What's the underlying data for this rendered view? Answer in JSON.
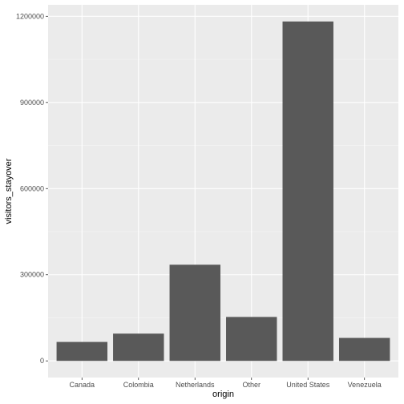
{
  "chart_data": {
    "type": "bar",
    "categories": [
      "Canada",
      "Colombia",
      "Netherlands",
      "Other",
      "United States",
      "Venezuela"
    ],
    "values": [
      66000,
      95000,
      335000,
      153000,
      1182000,
      80000
    ],
    "xlabel": "origin",
    "ylabel": "visitors_stayover",
    "ylim": [
      -58000,
      1240000
    ],
    "yticks": [
      0,
      300000,
      600000,
      900000,
      1200000
    ],
    "ytick_labels": [
      "0",
      "300000",
      "600000",
      "900000",
      "1200000"
    ],
    "grid": true,
    "colors": {
      "bar": "#595959",
      "panel": "#ebebeb",
      "grid_major": "#ffffff",
      "grid_minor": "#f5f5f5",
      "tick_text": "#4d4d4d"
    }
  }
}
